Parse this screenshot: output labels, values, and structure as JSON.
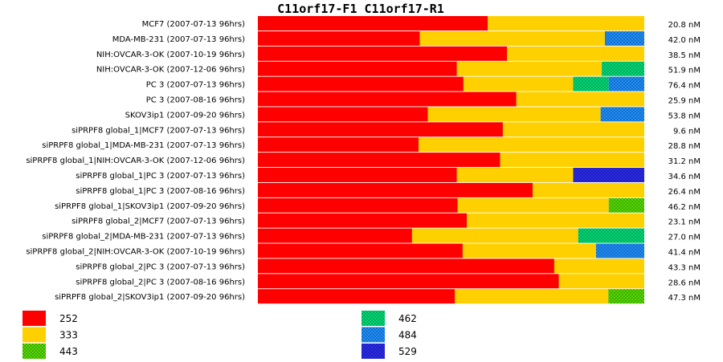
{
  "chart_data": {
    "type": "bar",
    "stacked": true,
    "normalized": true,
    "title": "C11orf17-F1  C11orf17-R1",
    "categories": [
      "MCF7 (2007-07-13 96hrs)",
      "MDA-MB-231 (2007-07-13 96hrs)",
      "NIH:OVCAR-3-OK (2007-10-19 96hrs)",
      "NIH:OVCAR-3-OK (2007-12-06 96hrs)",
      "PC 3 (2007-07-13 96hrs)",
      "PC 3 (2007-08-16 96hrs)",
      "SKOV3ip1 (2007-09-20 96hrs)",
      "siPRPF8 global_1|MCF7 (2007-07-13 96hrs)",
      "siPRPF8 global_1|MDA-MB-231 (2007-07-13 96hrs)",
      "siPRPF8 global_1|NIH:OVCAR-3-OK (2007-12-06 96hrs)",
      "siPRPF8 global_1|PC 3 (2007-07-13 96hrs)",
      "siPRPF8 global_1|PC 3 (2007-08-16 96hrs)",
      "siPRPF8 global_1|SKOV3ip1 (2007-09-20 96hrs)",
      "siPRPF8 global_2|MCF7 (2007-07-13 96hrs)",
      "siPRPF8 global_2|MDA-MB-231 (2007-07-13 96hrs)",
      "siPRPF8 global_2|NIH:OVCAR-3-OK (2007-10-19 96hrs)",
      "siPRPF8 global_2|PC 3 (2007-07-13 96hrs)",
      "siPRPF8 global_2|PC 3 (2007-08-16 96hrs)",
      "siPRPF8 global_2|SKOV3ip1 (2007-09-20 96hrs)"
    ],
    "value_labels": [
      "20.8 nM",
      "42.0 nM",
      "38.5 nM",
      "51.9 nM",
      "76.4 nM",
      "25.9 nM",
      "53.8 nM",
      "9.6 nM",
      "28.8 nM",
      "31.2 nM",
      "34.6 nM",
      "26.4 nM",
      "46.2 nM",
      "23.1 nM",
      "27.0 nM",
      "41.4 nM",
      "43.3 nM",
      "28.6 nM",
      "47.3 nM"
    ],
    "series": [
      {
        "name": "252",
        "color": "#ff0000",
        "pattern": "solid",
        "values": [
          0.595,
          0.419,
          0.645,
          0.515,
          0.532,
          0.669,
          0.44,
          0.634,
          0.416,
          0.627,
          0.515,
          0.711,
          0.517,
          0.541,
          0.399,
          0.53,
          0.767,
          0.779,
          0.51
        ]
      },
      {
        "name": "333",
        "color": "#ffd000",
        "pattern": "solid",
        "values": [
          0.405,
          0.479,
          0.355,
          0.375,
          0.284,
          0.331,
          0.447,
          0.366,
          0.584,
          0.373,
          0.301,
          0.289,
          0.391,
          0.459,
          0.43,
          0.345,
          0.233,
          0.221,
          0.397
        ]
      },
      {
        "name": "443",
        "color": "#55dd00",
        "pattern": "checker",
        "values": [
          0,
          0,
          0,
          0,
          0,
          0,
          0,
          0,
          0,
          0,
          0,
          0,
          0.092,
          0,
          0,
          0,
          0,
          0,
          0.093
        ]
      },
      {
        "name": "462",
        "color": "#00dd77",
        "pattern": "checker",
        "values": [
          0,
          0,
          0,
          0.11,
          0.092,
          0,
          0,
          0,
          0,
          0,
          0,
          0,
          0,
          0,
          0.171,
          0,
          0,
          0,
          0
        ]
      },
      {
        "name": "484",
        "color": "#1e90ff",
        "pattern": "checker",
        "values": [
          0,
          0.102,
          0,
          0,
          0.092,
          0,
          0.113,
          0,
          0,
          0,
          0,
          0,
          0,
          0,
          0,
          0.125,
          0,
          0,
          0
        ]
      },
      {
        "name": "529",
        "color": "#2a2aee",
        "pattern": "checker",
        "values": [
          0,
          0,
          0,
          0,
          0,
          0,
          0,
          0,
          0,
          0,
          0.184,
          0,
          0,
          0,
          0,
          0,
          0,
          0,
          0
        ]
      }
    ],
    "xlim": [
      0,
      1
    ],
    "grid": false,
    "legend_position": "bottom"
  }
}
